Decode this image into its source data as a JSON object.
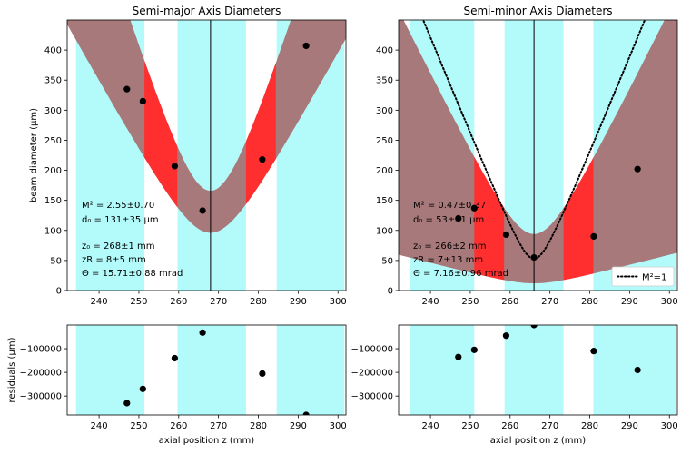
{
  "chart_data": [
    {
      "type": "line",
      "title": "Semi-major Axis Diameters",
      "xlabel": "",
      "ylabel": "beam diameter (µm)",
      "xlim": [
        232,
        302
      ],
      "ylim": [
        0,
        450
      ],
      "xticks": [
        240,
        250,
        260,
        270,
        280,
        290,
        300
      ],
      "yticks": [
        0,
        50,
        100,
        150,
        200,
        250,
        300,
        350,
        400
      ],
      "shaded_x_ranges": [
        [
          234.2,
          251.4
        ],
        [
          259.7,
          276.9
        ],
        [
          284.6,
          301.6
        ]
      ],
      "focus_line_x": 268,
      "fit": {
        "z0": 268,
        "d0": 131,
        "zR": 8,
        "M2": 2.55,
        "d0_err": 35,
        "zR_err": 5
      },
      "series": [
        {
          "x": [
            247,
            251,
            259,
            266,
            281,
            292
          ],
          "values": [
            335,
            315,
            207,
            133,
            218,
            407
          ]
        }
      ],
      "annotations": [
        "M² = 2.55±0.70",
        "d₀ = 131±35 µm",
        "z₀  = 268±1 mm",
        "zR  = 8±5 mm",
        "Θ  = 15.71±0.88 mrad"
      ]
    },
    {
      "type": "line",
      "title": "Semi-minor Axis Diameters",
      "xlabel": "",
      "ylabel": "",
      "xlim": [
        232,
        302
      ],
      "ylim": [
        0,
        450
      ],
      "xticks": [
        240,
        250,
        260,
        270,
        280,
        290,
        300
      ],
      "yticks": [
        0,
        50,
        100,
        150,
        200,
        250,
        300,
        350,
        400
      ],
      "shaded_x_ranges": [
        [
          234.9,
          251.0
        ],
        [
          258.6,
          273.4
        ],
        [
          280.9,
          301.6
        ]
      ],
      "focus_line_x": 266,
      "fit": {
        "z0": 266,
        "d0": 53,
        "zR": 7,
        "M2": 0.47,
        "d0_err": 41,
        "zR_err": 13
      },
      "series": [
        {
          "x": [
            247,
            251,
            259,
            266,
            281,
            292
          ],
          "values": [
            120,
            137,
            93,
            55,
            90,
            202
          ]
        }
      ],
      "reference": {
        "name": "M²=1",
        "style": "dotted",
        "d0": 53,
        "zR": 3.3
      },
      "legend": {
        "position": "bottom-right",
        "entries": [
          "M²=1"
        ]
      },
      "annotations": [
        "M² = 0.47±0.37",
        "d₀ = 53±41 µm",
        "z₀  = 266±2 mm",
        "zR  = 7±13 mm",
        "Θ  = 7.16±0.96 mrad"
      ]
    },
    {
      "type": "scatter",
      "title": "",
      "xlabel": "axial position z (mm)",
      "ylabel": "residuals (µm)",
      "xlim": [
        232,
        302
      ],
      "ylim": [
        -380000,
        0
      ],
      "xticks": [
        240,
        250,
        260,
        270,
        280,
        290,
        300
      ],
      "yticks": [
        -100000,
        -200000,
        -300000
      ],
      "ytick_labels": [
        "−100000",
        "−200000",
        "−300000"
      ],
      "shaded_x_ranges": [
        [
          234.2,
          251.4
        ],
        [
          259.7,
          276.9
        ],
        [
          284.6,
          301.6
        ]
      ],
      "series": [
        {
          "x": [
            247,
            251,
            259,
            266,
            281,
            292
          ],
          "values": [
            -330000,
            -270000,
            -140000,
            -32000,
            -205000,
            -380000
          ]
        }
      ]
    },
    {
      "type": "scatter",
      "title": "",
      "xlabel": "axial position z (mm)",
      "ylabel": "",
      "xlim": [
        232,
        302
      ],
      "ylim": [
        -380000,
        0
      ],
      "xticks": [
        240,
        250,
        260,
        270,
        280,
        290,
        300
      ],
      "yticks": [
        -100000,
        -200000,
        -300000
      ],
      "ytick_labels": [
        "−100000",
        "−200000",
        "−300000"
      ],
      "shaded_x_ranges": [
        [
          234.9,
          251.0
        ],
        [
          258.6,
          273.4
        ],
        [
          280.9,
          301.6
        ]
      ],
      "series": [
        {
          "x": [
            247,
            251,
            259,
            266,
            281,
            292
          ],
          "values": [
            -135000,
            -105000,
            -45000,
            0,
            -110000,
            -190000
          ]
        }
      ]
    }
  ]
}
